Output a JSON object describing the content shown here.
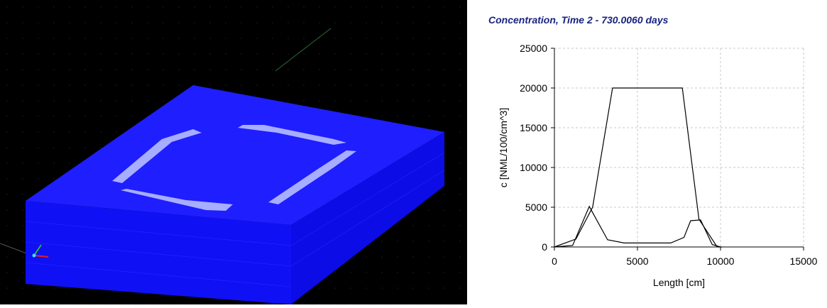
{
  "viewport": {
    "background": "#000000",
    "block_color": "#1212ff",
    "top_color": "#1f1fff",
    "patch_color": "#9aa4ff"
  },
  "chart_data": {
    "type": "line",
    "title": "Concentration, Time 2 - 730.0060 days",
    "xlabel": "Length [cm]",
    "ylabel": "c [NML/100/cm^3]",
    "xlim": [
      0,
      15000
    ],
    "ylim": [
      0,
      25000
    ],
    "xticks": [
      "0",
      "5000",
      "10000",
      "15000"
    ],
    "yticks": [
      "0",
      "5000",
      "10000",
      "15000",
      "20000",
      "25000"
    ],
    "grid": true,
    "series": [
      {
        "x": [
          0,
          1300,
          2300,
          3500,
          7700,
          8700,
          9800,
          10100
        ],
        "y": [
          0,
          1000,
          5000,
          20000,
          20000,
          3500,
          0,
          0
        ]
      },
      {
        "x": [
          0,
          1100,
          2100,
          3200,
          4200,
          5000,
          6000,
          7000,
          7800,
          8200,
          8800,
          9500,
          10000
        ],
        "y": [
          0,
          200,
          5100,
          900,
          500,
          500,
          500,
          500,
          1200,
          3300,
          3400,
          300,
          0
        ]
      }
    ]
  }
}
